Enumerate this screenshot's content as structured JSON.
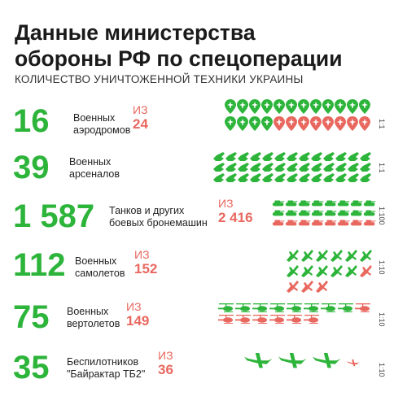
{
  "header": {
    "title_line1": "Данные министерства",
    "title_line2": "обороны РФ по спецоперации",
    "subtitle": "КОЛИЧЕСТВО УНИЧТОЖЕННОЙ ТЕХНИКИ УКРАИНЫ"
  },
  "colors": {
    "green": "#2db43a",
    "red": "#e8685f"
  },
  "rows": [
    {
      "id": "airfields",
      "number": "16",
      "label1": "Военных",
      "label2": "аэродромов",
      "of": "ИЗ",
      "total": "24",
      "ratio": "1:1",
      "icon": "pin-airplane-icon",
      "destroyed": 16,
      "total_count": 24
    },
    {
      "id": "arsenals",
      "number": "39",
      "label1": "Военных",
      "label2": "арсеналов",
      "of": "",
      "total": "",
      "ratio": "1:1",
      "icon": "ammo-icon",
      "destroyed": 39,
      "total_count": 39
    },
    {
      "id": "tanks",
      "number": "1 587",
      "label1": "Танков и других",
      "label2": "боевых бронемашин",
      "of": "ИЗ",
      "total": "2 416",
      "ratio": "1:100",
      "icon": "tank-icon",
      "destroyed": 16,
      "total_count": 24
    },
    {
      "id": "planes",
      "number": "112",
      "label1": "Военных",
      "label2": "самолетов",
      "of": "ИЗ",
      "total": "152",
      "ratio": "1:10",
      "icon": "plane-icon",
      "destroyed": 11,
      "total_count": 15
    },
    {
      "id": "helicopters",
      "number": "75",
      "label1": "Военных",
      "label2": "вертолетов",
      "of": "ИЗ",
      "total": "149",
      "ratio": "1:10",
      "icon": "helicopter-icon",
      "destroyed": 8,
      "total_count": 15
    },
    {
      "id": "drones",
      "number": "35",
      "label1": "Беспилотников",
      "label2": "\"Байрактар ТБ2\"",
      "of": "ИЗ",
      "total": "36",
      "ratio": "1:10",
      "icon": "drone-icon",
      "destroyed": 3,
      "total_count": 4
    }
  ]
}
